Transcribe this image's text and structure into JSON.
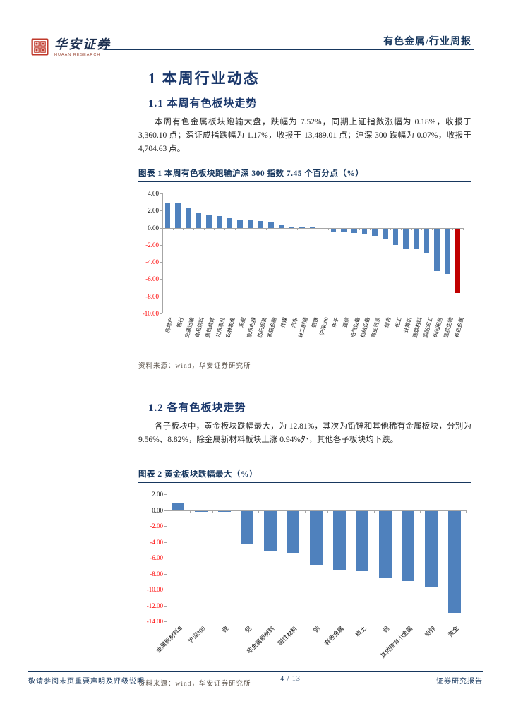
{
  "header": {
    "logo_title": "华安证券",
    "logo_subtitle": "HUAAN RESEARCH",
    "report_type": "有色金属/行业周报"
  },
  "section1": {
    "title": "1 本周行业动态",
    "sub1_title": "1.1 本周有色板块走势",
    "sub1_body": "本周有色金属板块跑输大盘，跌幅为 7.52%，同期上证指数涨幅为 0.18%，收报于 3,360.10 点；深证成指跌幅为 1.17%，收报于 13,489.01 点；沪深 300 跌幅为 0.07%，收报于 4,704.63 点。",
    "sub2_title": "1.2 各有色板块走势",
    "sub2_body": "各子板块中，黄金板块跌幅最大，为 12.81%，其次为铅锌和其他稀有金属板块，分别为 9.56%、8.82%，除金属新材料板块上涨 0.94%外，其他各子板块均下跌。"
  },
  "figure1": {
    "caption": "图表 1 本周有色板块跑输沪深 300 指数 7.45 个百分点（%）",
    "source": "资料来源：wind，华安证券研究所"
  },
  "figure2": {
    "caption": "图表 2 黄金板块跌幅最大（%）",
    "source": "资料来源：wind，华安证券研究所"
  },
  "footer": {
    "left": "敬请参阅末页重要声明及评级说明",
    "center": "4 / 13",
    "right": "证券研究报告"
  },
  "colors": {
    "bar_blue": "#4F81BD",
    "bar_red": "#C00000",
    "navy": "#17375E",
    "neg_tick": "#FF0000",
    "axis_gray": "#A6A6A6"
  },
  "chart_data": [
    {
      "type": "bar",
      "title": "本周有色板块跑输沪深300指数 7.45个百分点（%）",
      "categories": [
        "房地产",
        "银行",
        "交通运输",
        "食品饮料",
        "建筑装饰",
        "公用事业",
        "农林牧渔",
        "采掘",
        "家用电器",
        "纺织服装",
        "非银金融",
        "传媒",
        "汽车",
        "轻工制造",
        "钢铁",
        "沪深300",
        "电子",
        "通信",
        "电气设备",
        "机械设备",
        "商业贸易",
        "综合",
        "化工",
        "计算机",
        "建筑材料",
        "国防军工",
        "休闲服务",
        "医药生物",
        "有色金属"
      ],
      "values": [
        2.85,
        2.87,
        2.35,
        1.7,
        1.45,
        1.33,
        1.1,
        0.97,
        0.95,
        0.78,
        0.65,
        0.4,
        0.15,
        0.06,
        0.04,
        -0.07,
        -0.4,
        -0.45,
        -0.5,
        -0.62,
        -0.85,
        -1.3,
        -1.95,
        -2.35,
        -2.42,
        -2.85,
        -5.0,
        -5.3,
        -7.52
      ],
      "red_categories": [
        "沪深300",
        "有色金属"
      ],
      "ylim": [
        -10,
        4
      ],
      "ytick_step": 2,
      "xlabel": "",
      "ylabel": "%",
      "grid": false,
      "legend": "none"
    },
    {
      "type": "bar",
      "title": "黄金板块跌幅最大（%）",
      "categories": [
        "金属新材料Ⅲ",
        "沪深300",
        "锂",
        "铝",
        "非金属新材料",
        "磁性材料",
        "铜",
        "有色金属",
        "稀土",
        "钨",
        "其他稀有小金属",
        "铅锌",
        "黄金"
      ],
      "values": [
        0.94,
        -0.07,
        -0.15,
        -4.1,
        -5.0,
        -5.3,
        -6.8,
        -7.52,
        -7.6,
        -8.4,
        -8.82,
        -9.56,
        -12.81
      ],
      "red_categories": [],
      "ylim": [
        -14,
        2
      ],
      "ytick_step": 2,
      "xlabel": "",
      "ylabel": "%",
      "grid": false,
      "legend": "none"
    }
  ]
}
